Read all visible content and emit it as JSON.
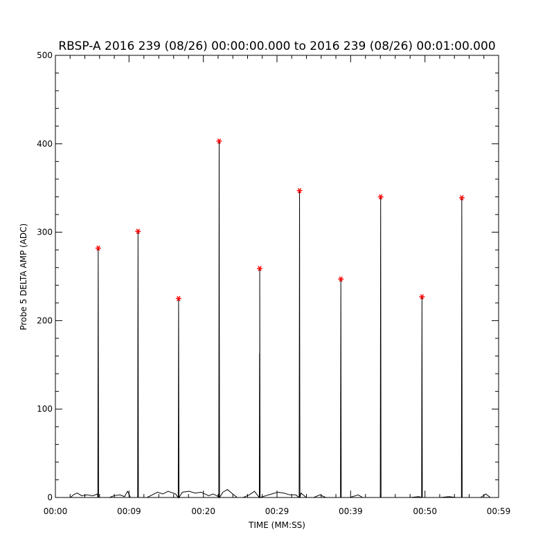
{
  "chart_data": {
    "type": "line",
    "title": "RBSP-A 2016 239 (08/26) 00:00:00.000 to 2016 239 (08/26) 00:01:00.000",
    "xlabel": "TIME (MM:SS)",
    "ylabel": "Probe 5 DELTA AMP (ADC)",
    "x_unit": "seconds",
    "xlim": [
      0,
      59
    ],
    "ylim": [
      0,
      500
    ],
    "x_ticks": [
      {
        "value": 0,
        "label": "00:00"
      },
      {
        "value": 9.8,
        "label": "00:09"
      },
      {
        "value": 19.7,
        "label": "00:20"
      },
      {
        "value": 29.5,
        "label": "00:29"
      },
      {
        "value": 39.3,
        "label": "00:39"
      },
      {
        "value": 49.2,
        "label": "00:50"
      },
      {
        "value": 59,
        "label": "00:59"
      }
    ],
    "y_ticks": [
      0,
      100,
      200,
      300,
      400,
      500
    ],
    "grid": false,
    "series": [
      {
        "color": "#000000",
        "baseline": [
          [
            0.0,
            0
          ],
          [
            2.0,
            0
          ],
          [
            2.4,
            3
          ],
          [
            2.9,
            5
          ],
          [
            3.5,
            2
          ],
          [
            4.2,
            3
          ],
          [
            5.0,
            2
          ],
          [
            5.6,
            4
          ],
          [
            6.2,
            0
          ],
          [
            7.2,
            0
          ],
          [
            7.8,
            2
          ],
          [
            8.6,
            3
          ],
          [
            9.2,
            1
          ],
          [
            9.6,
            7
          ],
          [
            10.0,
            0
          ],
          [
            12.2,
            0
          ],
          [
            12.9,
            3
          ],
          [
            13.6,
            6
          ],
          [
            14.3,
            4
          ],
          [
            15.0,
            7
          ],
          [
            16.0,
            4
          ],
          [
            16.9,
            6
          ],
          [
            17.8,
            7
          ],
          [
            18.6,
            5
          ],
          [
            19.4,
            6
          ],
          [
            20.4,
            2
          ],
          [
            21.0,
            4
          ],
          [
            21.7,
            1
          ],
          [
            22.3,
            6
          ],
          [
            22.9,
            9
          ],
          [
            23.6,
            4
          ],
          [
            24.2,
            0
          ],
          [
            25.0,
            0
          ],
          [
            25.8,
            3
          ],
          [
            26.5,
            7
          ],
          [
            27.2,
            5
          ],
          [
            28.0,
            2
          ],
          [
            28.8,
            4
          ],
          [
            29.6,
            6
          ],
          [
            30.4,
            5
          ],
          [
            31.2,
            3
          ],
          [
            32.0,
            3
          ],
          [
            32.7,
            5
          ],
          [
            33.4,
            0
          ],
          [
            34.4,
            0
          ],
          [
            35.2,
            3
          ],
          [
            36.0,
            0
          ],
          [
            37.6,
            0
          ],
          [
            39.2,
            0
          ],
          [
            40.3,
            3
          ],
          [
            40.9,
            0
          ],
          [
            43.0,
            0
          ],
          [
            45.0,
            0
          ],
          [
            47.2,
            0
          ],
          [
            48.4,
            1
          ],
          [
            49.0,
            0
          ],
          [
            51.2,
            0
          ],
          [
            52.4,
            1
          ],
          [
            53.3,
            0
          ],
          [
            56.6,
            0
          ],
          [
            57.3,
            4
          ],
          [
            57.9,
            0
          ],
          [
            59.0,
            0
          ]
        ],
        "spikes": [
          [
            5.7,
            282
          ],
          [
            11.0,
            301
          ],
          [
            16.4,
            225
          ],
          [
            21.8,
            403
          ],
          [
            27.2,
            259
          ],
          [
            32.5,
            347
          ],
          [
            38.0,
            247
          ],
          [
            43.3,
            340
          ],
          [
            48.8,
            227
          ],
          [
            54.1,
            339
          ]
        ]
      }
    ],
    "markers": {
      "symbol": "*",
      "color": "#ff0000",
      "points": [
        [
          5.7,
          282
        ],
        [
          11.0,
          301
        ],
        [
          16.4,
          225
        ],
        [
          21.8,
          403
        ],
        [
          27.2,
          259
        ],
        [
          32.5,
          347
        ],
        [
          38.0,
          247
        ],
        [
          43.3,
          340
        ],
        [
          48.8,
          227
        ],
        [
          54.1,
          339
        ]
      ]
    }
  }
}
